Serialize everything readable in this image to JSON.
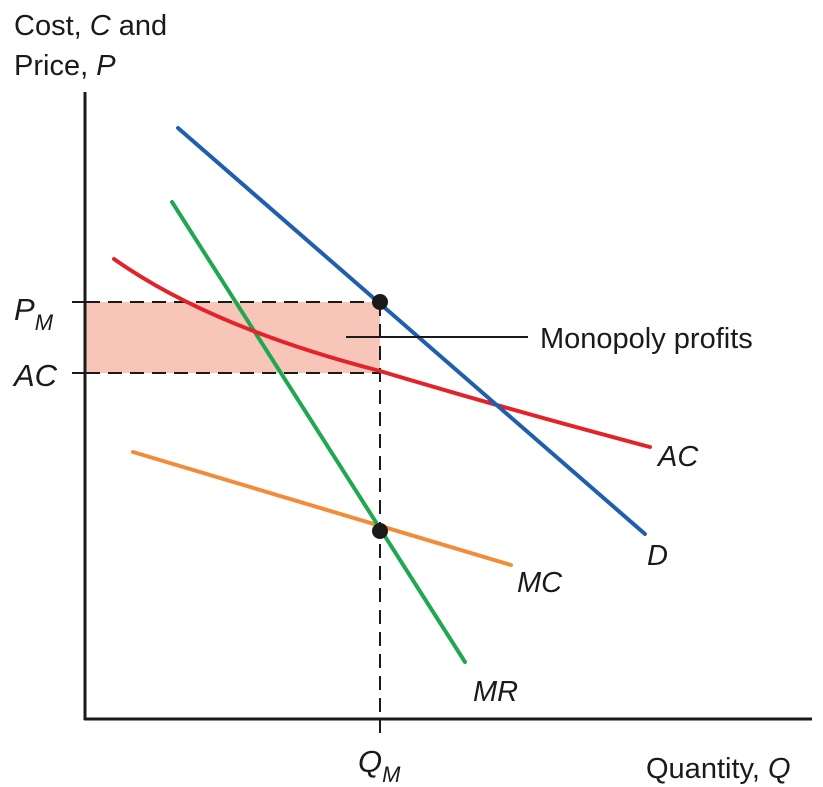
{
  "diagram": {
    "y_axis_label": {
      "line1_prefix": "Cost, ",
      "line1_var": "C",
      "line1_suffix": " and",
      "line2_prefix": "Price, ",
      "line2_var": "P"
    },
    "x_axis_label": {
      "prefix": "Quantity, ",
      "var": "Q"
    },
    "price_tick": {
      "main": "P",
      "sub": "M"
    },
    "cost_tick": "AC",
    "quantity_tick": {
      "main": "Q",
      "sub": "M"
    },
    "annotation": "Monopoly profits",
    "curves": {
      "demand": {
        "label": "D",
        "color": "#1f5fae"
      },
      "average_cost": {
        "label": "AC",
        "color": "#e2232a"
      },
      "marginal_revenue": {
        "label": "MR",
        "color": "#1fa84f"
      },
      "marginal_cost": {
        "label": "MC",
        "color": "#f28c38"
      }
    },
    "profit_area_color": "#f8c6b8"
  }
}
